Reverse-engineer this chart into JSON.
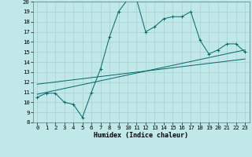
{
  "title": "",
  "xlabel": "Humidex (Indice chaleur)",
  "bg_color": "#c0e8e8",
  "line_color": "#006868",
  "xlim": [
    -0.5,
    23.5
  ],
  "ylim": [
    8,
    20
  ],
  "xticks": [
    0,
    1,
    2,
    3,
    4,
    5,
    6,
    7,
    8,
    9,
    10,
    11,
    12,
    13,
    14,
    15,
    16,
    17,
    18,
    19,
    20,
    21,
    22,
    23
  ],
  "yticks": [
    8,
    9,
    10,
    11,
    12,
    13,
    14,
    15,
    16,
    17,
    18,
    19,
    20
  ],
  "main_x": [
    0,
    1,
    2,
    3,
    4,
    5,
    6,
    7,
    8,
    9,
    10,
    11,
    12,
    13,
    14,
    15,
    16,
    17,
    18,
    19,
    20,
    21,
    22,
    23
  ],
  "main_y": [
    10.5,
    10.9,
    10.9,
    10.0,
    9.8,
    8.5,
    11.0,
    13.3,
    16.5,
    19.0,
    20.2,
    20.2,
    17.0,
    17.5,
    18.3,
    18.5,
    18.5,
    19.0,
    16.2,
    14.8,
    15.2,
    15.8,
    15.8,
    15.0
  ],
  "line2_x": [
    0,
    23
  ],
  "line2_y": [
    10.8,
    15.2
  ],
  "line3_x": [
    0,
    23
  ],
  "line3_y": [
    11.8,
    14.3
  ],
  "tick_fontsize": 5.2,
  "xlabel_fontsize": 6.0
}
